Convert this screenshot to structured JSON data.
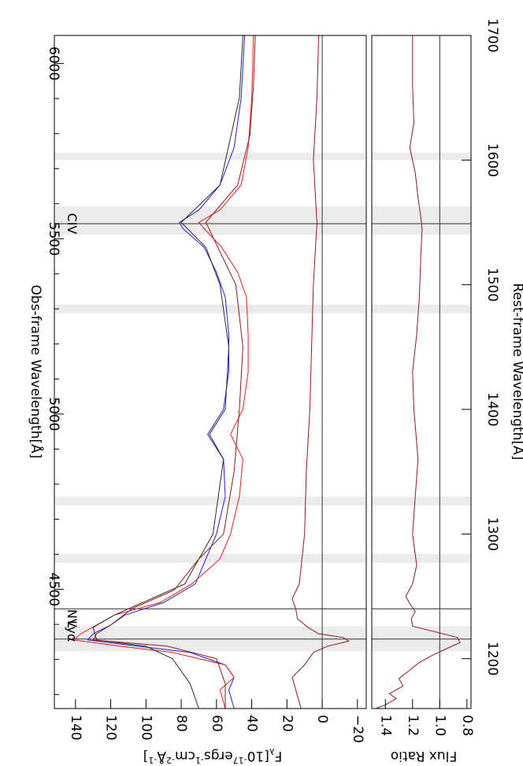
{
  "chart_data": [
    {
      "type": "line",
      "panel": "main",
      "orientation": "rotated 90 degrees clockwise",
      "xlabel_top": "Obs-frame Wavelength[Å]",
      "xlabel_bottom": "Rest-frame Wavelength[Å]",
      "ylabel": "F_λ[10^-17ergs^-1cm^-2Å^-1]",
      "ylabel_parts": {
        "f": "F",
        "sub": "λ",
        "a": "[10",
        "e1": "-17",
        "b": "ergs",
        "e2": "-1",
        "c": "cm",
        "e3": "-2",
        "d": "Å",
        "e4": "-1",
        "e": "]"
      },
      "x_obs_range": [
        4160,
        6080
      ],
      "x_obs_ticks": [
        "4500",
        "5000",
        "5500",
        "6000"
      ],
      "x_rest_range": [
        1160,
        1700
      ],
      "x_rest_ticks": [
        "1200",
        "1300",
        "1400",
        "1500",
        "1600",
        "1700"
      ],
      "ylim": [
        -25,
        152
      ],
      "y_ticks": [
        "140",
        "120",
        "100",
        "80",
        "60",
        "40",
        "20",
        "0",
        "−20"
      ],
      "y_tick_values": [
        140,
        120,
        100,
        80,
        60,
        40,
        20,
        0,
        -20
      ],
      "line_labels": [
        {
          "text": "Lyα",
          "rest": 1215.7
        },
        {
          "text": "NV",
          "rest": 1240
        },
        {
          "text": "CIV",
          "rest": 1549
        }
      ],
      "shaded_bands_rest": [
        [
          1206,
          1226
        ],
        [
          1277,
          1284
        ],
        [
          1323,
          1330
        ],
        [
          1477,
          1484
        ],
        [
          1540,
          1563
        ],
        [
          1600,
          1606
        ]
      ],
      "reference_lines_rest": [
        1215.7,
        1240,
        1549
      ],
      "zero_line": 0,
      "series": [
        {
          "color": "#1f1fdf",
          "rest": [
            1160,
            1175,
            1185,
            1195,
            1205,
            1210,
            1215,
            1220,
            1227,
            1235,
            1245,
            1260,
            1280,
            1300,
            1330,
            1360,
            1380,
            1400,
            1430,
            1460,
            1490,
            1510,
            1530,
            1545,
            1550,
            1560,
            1580,
            1610,
            1650,
            1700
          ],
          "flux": [
            50,
            53,
            50,
            55,
            75,
            105,
            133,
            130,
            120,
            112,
            90,
            72,
            66,
            60,
            55,
            56,
            65,
            56,
            53,
            53,
            55,
            60,
            67,
            79,
            81,
            70,
            58,
            50,
            46,
            44
          ]
        },
        {
          "color": "#e02020",
          "rest": [
            1160,
            1175,
            1185,
            1195,
            1205,
            1210,
            1215,
            1220,
            1227,
            1235,
            1245,
            1260,
            1280,
            1300,
            1330,
            1360,
            1380,
            1400,
            1430,
            1460,
            1490,
            1510,
            1530,
            1545,
            1550,
            1560,
            1580,
            1610,
            1650,
            1700
          ],
          "flux": [
            55,
            58,
            50,
            55,
            85,
            115,
            141,
            137,
            128,
            118,
            92,
            74,
            58,
            52,
            47,
            45,
            52,
            45,
            42,
            42,
            43,
            48,
            57,
            67,
            70,
            58,
            46,
            42,
            40,
            39
          ]
        },
        {
          "color": "#2a2a2a",
          "rest": [
            1160,
            1180,
            1200,
            1210,
            1215,
            1225,
            1235,
            1260,
            1300,
            1360,
            1380,
            1400,
            1450,
            1500,
            1530,
            1550,
            1580,
            1650,
            1700
          ],
          "flux": [
            70,
            75,
            85,
            100,
            128,
            130,
            118,
            78,
            62,
            56,
            64,
            55,
            53,
            58,
            66,
            80,
            58,
            47,
            45
          ]
        },
        {
          "color": "#8b1a1a",
          "rest": [
            1160,
            1180,
            1200,
            1210,
            1215,
            1220,
            1227,
            1240,
            1255,
            1280,
            1300,
            1350,
            1400,
            1450,
            1500,
            1550,
            1580,
            1620,
            1660,
            1700
          ],
          "flux": [
            55,
            55,
            60,
            88,
            130,
            128,
            120,
            108,
            84,
            70,
            56,
            50,
            47,
            45,
            49,
            66,
            48,
            41,
            39,
            38
          ]
        },
        {
          "color": "#8b1a1a",
          "rest": [
            1160,
            1175,
            1185,
            1195,
            1205,
            1210,
            1214,
            1217,
            1220,
            1225,
            1232,
            1240,
            1248,
            1260,
            1300,
            1350,
            1400,
            1450,
            1500,
            1550,
            1600,
            1650,
            1700
          ],
          "flux": [
            12,
            15,
            17,
            10,
            5,
            -3,
            -15,
            -12,
            2,
            8,
            14,
            15,
            17,
            13,
            10,
            9,
            7,
            6,
            5,
            3,
            5,
            3,
            2
          ]
        }
      ]
    },
    {
      "type": "line",
      "panel": "ratio",
      "ylabel": "Flux Ratio",
      "ylim": [
        0.77,
        1.5
      ],
      "y_ticks": [
        "1.4",
        "1.2",
        "1.0",
        "0.8"
      ],
      "y_tick_values": [
        1.4,
        1.2,
        1.0,
        0.8
      ],
      "reference_lines_rest": [
        1215.7,
        1240,
        1549
      ],
      "series": [
        {
          "color": "#8b1a1a",
          "rest": [
            1160,
            1163,
            1168,
            1172,
            1178,
            1184,
            1190,
            1197,
            1203,
            1208,
            1213,
            1217,
            1222,
            1226,
            1232,
            1238,
            1244,
            1250,
            1260,
            1275,
            1300,
            1330,
            1360,
            1400,
            1430,
            1460,
            1490,
            1520,
            1545,
            1555,
            1570,
            1590,
            1610,
            1630,
            1660,
            1700
          ],
          "ratio": [
            1.47,
            1.4,
            1.32,
            1.37,
            1.27,
            1.3,
            1.23,
            1.15,
            1.05,
            0.95,
            0.85,
            0.87,
            1.05,
            1.2,
            1.21,
            1.18,
            1.22,
            1.25,
            1.2,
            1.17,
            1.2,
            1.18,
            1.16,
            1.19,
            1.2,
            1.17,
            1.15,
            1.14,
            1.13,
            1.14,
            1.16,
            1.18,
            1.22,
            1.19,
            1.2,
            1.2
          ]
        }
      ]
    }
  ]
}
